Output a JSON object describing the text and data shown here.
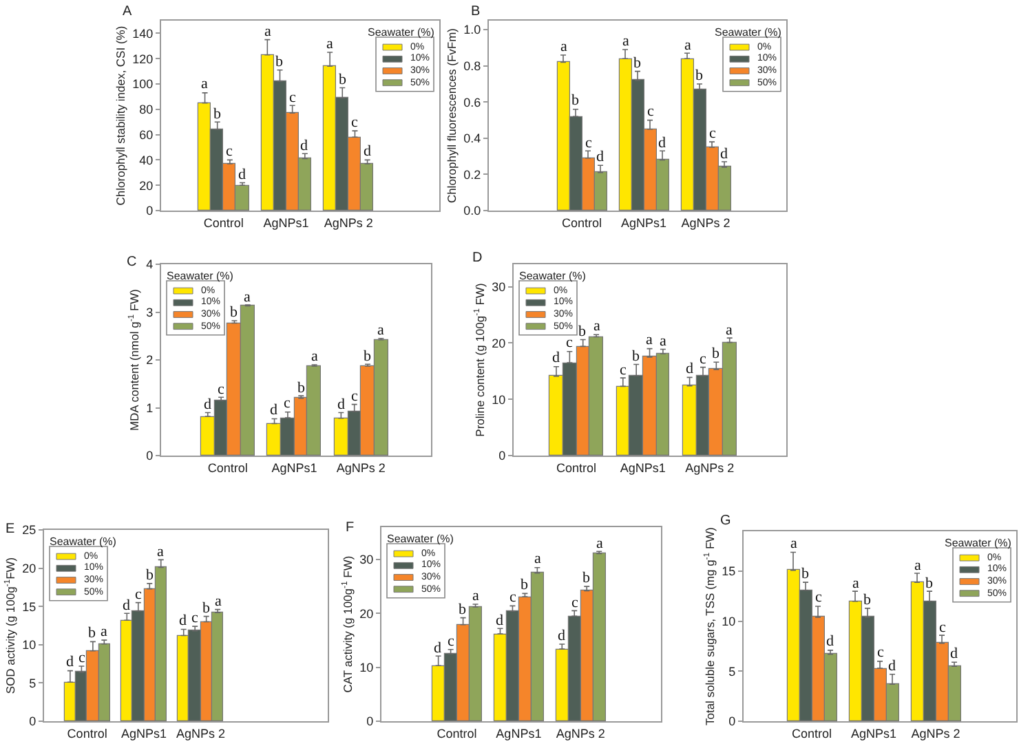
{
  "chart_data": [
    {
      "type": "bar",
      "title": "A",
      "ylabel": "Chlorophyll stability index, CSI (%)",
      "legend_title": "Seawater (%)",
      "legend": "top right",
      "categories": [
        "Control",
        "AgNPs1",
        "AgNPs 2"
      ],
      "ylim": [
        0,
        150
      ],
      "yticks": [
        0,
        20,
        40,
        60,
        80,
        100,
        120,
        140
      ],
      "series": [
        {
          "name": "0%",
          "color": "#ffe600",
          "values": [
            85,
            123,
            114
          ],
          "errors": [
            [
              85,
              93
            ],
            [
              123,
              135
            ],
            [
              114,
              125
            ]
          ],
          "value_labels": [
            "a",
            "a",
            "a"
          ]
        },
        {
          "name": "10%",
          "color": "#4f5f57",
          "values": [
            64,
            102,
            89
          ],
          "errors": [
            [
              64,
              70
            ],
            [
              102,
              111
            ],
            [
              89,
              97
            ]
          ],
          "value_labels": [
            "b",
            "b",
            "b"
          ]
        },
        {
          "name": "30%",
          "color": "#f5852a",
          "values": [
            37,
            77,
            58
          ],
          "errors": [
            [
              37,
              40
            ],
            [
              77,
              83
            ],
            [
              58,
              63
            ]
          ],
          "value_labels": [
            "c",
            "c",
            "c"
          ]
        },
        {
          "name": "50%",
          "color": "#8fa55a",
          "values": [
            20,
            41,
            37
          ],
          "errors": [
            [
              20,
              22
            ],
            [
              41,
              45
            ],
            [
              37,
              40
            ]
          ],
          "value_labels": [
            "d",
            "d",
            "d"
          ]
        }
      ]
    },
    {
      "type": "bar",
      "title": "B",
      "ylabel": "Chlorophyll fluorescences (FvFm)",
      "legend_title": "Seawater (%)",
      "legend": "top right",
      "categories": [
        "Control",
        "AgNPs1",
        "AgNPs 2"
      ],
      "ylim": [
        0,
        1.05
      ],
      "yticks": [
        {
          "value": 0,
          "label": "0.0"
        },
        0.2,
        0.4,
        0.6,
        0.8,
        {
          "value": 1,
          "label": "1.0"
        }
      ],
      "series": [
        {
          "name": "0%",
          "color": "#ffe600",
          "values": [
            0.82,
            0.84,
            0.84
          ],
          "errors": [
            [
              0.82,
              0.86
            ],
            [
              0.84,
              0.89
            ],
            [
              0.84,
              0.87
            ]
          ],
          "value_labels": [
            "a",
            "a",
            "a"
          ]
        },
        {
          "name": "10%",
          "color": "#4f5f57",
          "values": [
            0.52,
            0.72,
            0.67
          ],
          "errors": [
            [
              0.52,
              0.56
            ],
            [
              0.72,
              0.77
            ],
            [
              0.67,
              0.7
            ]
          ],
          "value_labels": [
            "b",
            "b",
            "b"
          ]
        },
        {
          "name": "30%",
          "color": "#f5852a",
          "values": [
            0.29,
            0.45,
            0.35
          ],
          "errors": [
            [
              0.29,
              0.33
            ],
            [
              0.45,
              0.5
            ],
            [
              0.35,
              0.38
            ]
          ],
          "value_labels": [
            "c",
            "c",
            "c"
          ]
        },
        {
          "name": "50%",
          "color": "#8fa55a",
          "values": [
            0.21,
            0.28,
            0.24
          ],
          "errors": [
            [
              0.21,
              0.25
            ],
            [
              0.28,
              0.33
            ],
            [
              0.24,
              0.27
            ]
          ],
          "value_labels": [
            "d",
            "d",
            "d"
          ]
        }
      ]
    },
    {
      "type": "bar",
      "title": "C",
      "ylabel": "MDA content (nmol g$^{-1}$ FW)",
      "legend_title": "Seawater (%)",
      "legend": "top left",
      "categories": [
        "Control",
        "AgNPs1",
        "AgNPs 2"
      ],
      "ylim": [
        0,
        4
      ],
      "yticks": [
        0,
        1,
        2,
        3,
        4
      ],
      "series": [
        {
          "name": "0%",
          "color": "#ffe600",
          "values": [
            0.82,
            0.67,
            0.78
          ],
          "errors": [
            [
              0.82,
              0.9
            ],
            [
              0.67,
              0.77
            ],
            [
              0.78,
              0.9
            ]
          ],
          "value_labels": [
            "d",
            "d",
            "d"
          ]
        },
        {
          "name": "10%",
          "color": "#4f5f57",
          "values": [
            1.15,
            0.79,
            0.92
          ],
          "errors": [
            [
              1.15,
              1.22
            ],
            [
              0.79,
              0.91
            ],
            [
              0.92,
              1.07
            ]
          ],
          "value_labels": [
            "c",
            "c",
            "c"
          ]
        },
        {
          "name": "30%",
          "color": "#f5852a",
          "values": [
            2.77,
            1.2,
            1.87
          ],
          "errors": [
            [
              2.77,
              2.82
            ],
            [
              1.2,
              1.25
            ],
            [
              1.87,
              1.91
            ]
          ],
          "value_labels": [
            "b",
            "b",
            "b"
          ]
        },
        {
          "name": "50%",
          "color": "#8fa55a",
          "values": [
            3.13,
            1.87,
            2.42
          ],
          "errors": [
            [
              3.13,
              3.15
            ],
            [
              1.87,
              1.9
            ],
            [
              2.42,
              2.45
            ]
          ],
          "value_labels": [
            "a",
            "a",
            "a"
          ]
        }
      ]
    },
    {
      "type": "bar",
      "title": "D",
      "ylabel": "Proline content (g 100g$^{-1}$ FW)",
      "legend_title": "Seawater (%)",
      "legend": "top left",
      "categories": [
        "Control",
        "AgNPs1",
        "AgNPs 2"
      ],
      "ylim": [
        0,
        34
      ],
      "yticks": [
        0,
        10,
        20,
        30
      ],
      "series": [
        {
          "name": "0%",
          "color": "#ffe600",
          "values": [
            14.1,
            12.3,
            12.4
          ],
          "errors": [
            [
              14.1,
              15.8
            ],
            [
              12.3,
              13.8
            ],
            [
              12.4,
              13.9
            ]
          ],
          "value_labels": [
            "d",
            "c",
            "d"
          ]
        },
        {
          "name": "10%",
          "color": "#4f5f57",
          "values": [
            16.5,
            14.2,
            14.2
          ],
          "errors": [
            [
              16.5,
              18.5
            ],
            [
              14.2,
              16.2
            ],
            [
              14.2,
              15.7
            ]
          ],
          "value_labels": [
            "c",
            "b",
            "c"
          ]
        },
        {
          "name": "30%",
          "color": "#f5852a",
          "values": [
            19.4,
            17.5,
            15.3
          ],
          "errors": [
            [
              19.4,
              20.6
            ],
            [
              17.5,
              19
            ],
            [
              15.3,
              16.6
            ]
          ],
          "value_labels": [
            "b",
            "a",
            "b"
          ]
        },
        {
          "name": "50%",
          "color": "#8fa55a",
          "values": [
            21.1,
            18.1,
            20.1
          ],
          "errors": [
            [
              21.1,
              21.5
            ],
            [
              18.1,
              18.9
            ],
            [
              20.1,
              20.9
            ]
          ],
          "value_labels": [
            "a",
            "a",
            "a"
          ]
        }
      ]
    },
    {
      "type": "bar",
      "title": "E",
      "ylabel": "SOD activity (g 100g$^{-1}$FW)",
      "legend_title": "Seawater (%)",
      "legend": "top left",
      "categories": [
        "Control",
        "AgNPs1",
        "AgNPs 2"
      ],
      "ylim": [
        0,
        25
      ],
      "yticks": [
        0,
        5,
        10,
        15,
        20,
        25
      ],
      "series": [
        {
          "name": "0%",
          "color": "#ffe600",
          "values": [
            5.1,
            13.2,
            11.2
          ],
          "errors": [
            [
              5.1,
              6.6
            ],
            [
              13.2,
              14.1
            ],
            [
              11.2,
              12
            ]
          ],
          "value_labels": [
            "d",
            "d",
            "d"
          ]
        },
        {
          "name": "10%",
          "color": "#4f5f57",
          "values": [
            6.4,
            14.4,
            11.8
          ],
          "errors": [
            [
              6.4,
              7.2
            ],
            [
              14.4,
              15.5
            ],
            [
              11.8,
              12.4
            ]
          ],
          "value_labels": [
            "c",
            "c",
            "c"
          ]
        },
        {
          "name": "30%",
          "color": "#f5852a",
          "values": [
            9.2,
            17.3,
            13
          ],
          "errors": [
            [
              9.2,
              10.4
            ],
            [
              17.3,
              18
            ],
            [
              13,
              13.7
            ]
          ],
          "value_labels": [
            "b",
            "b",
            "b"
          ]
        },
        {
          "name": "50%",
          "color": "#8fa55a",
          "values": [
            10.1,
            20.1,
            14.2
          ],
          "errors": [
            [
              10.1,
              10.6
            ],
            [
              20.1,
              21.1
            ],
            [
              14.2,
              14.6
            ]
          ],
          "value_labels": [
            "a",
            "a",
            "a"
          ]
        }
      ]
    },
    {
      "type": "bar",
      "title": "F",
      "ylabel": "CAT activity (g 100g$^{-1}$ FW)",
      "legend_title": "Seawater (%)",
      "legend": "top left",
      "categories": [
        "Control",
        "AgNPs1",
        "AgNPs 2"
      ],
      "ylim": [
        0,
        36
      ],
      "yticks": [
        0,
        10,
        20,
        30
      ],
      "series": [
        {
          "name": "0%",
          "color": "#ffe600",
          "values": [
            10.3,
            16.2,
            13.4
          ],
          "errors": [
            [
              10.3,
              12.1
            ],
            [
              16.2,
              17.2
            ],
            [
              13.4,
              14.3
            ]
          ],
          "value_labels": [
            "d",
            "d",
            "d"
          ]
        },
        {
          "name": "10%",
          "color": "#4f5f57",
          "values": [
            12.5,
            20.4,
            19.5
          ],
          "errors": [
            [
              12.5,
              13.3
            ],
            [
              20.4,
              21.4
            ],
            [
              19.5,
              20.5
            ]
          ],
          "value_labels": [
            "c",
            "c",
            "c"
          ]
        },
        {
          "name": "30%",
          "color": "#f5852a",
          "values": [
            17.9,
            23.1,
            24.2
          ],
          "errors": [
            [
              17.9,
              19.2
            ],
            [
              23.1,
              23.7
            ],
            [
              24.2,
              25
            ]
          ],
          "value_labels": [
            "b",
            "b",
            "b"
          ]
        },
        {
          "name": "50%",
          "color": "#8fa55a",
          "values": [
            21.2,
            27.5,
            31.1
          ],
          "errors": [
            [
              21.2,
              21.7
            ],
            [
              27.5,
              28.5
            ],
            [
              31.1,
              31.5
            ]
          ],
          "value_labels": [
            "a",
            "a",
            "a"
          ]
        }
      ]
    },
    {
      "type": "bar",
      "title": "G",
      "ylabel": "Total soluble sugars, TSS (mg g$^{-1}$ FW)",
      "legend_title": "Seawater (%)",
      "legend": "top right",
      "categories": [
        "Control",
        "AgNPs1",
        "AgNPs 2"
      ],
      "ylim": [
        0,
        19
      ],
      "yticks": [
        0,
        5,
        10,
        15
      ],
      "series": [
        {
          "name": "0%",
          "color": "#ffe600",
          "values": [
            15.1,
            12,
            13.9
          ],
          "errors": [
            [
              15.1,
              16.9
            ],
            [
              12,
              13
            ],
            [
              13.9,
              14.8
            ]
          ],
          "value_labels": [
            "a",
            "a",
            "a"
          ]
        },
        {
          "name": "10%",
          "color": "#4f5f57",
          "values": [
            13.1,
            10.4,
            12
          ],
          "errors": [
            [
              13.1,
              13.9
            ],
            [
              10.4,
              11.3
            ],
            [
              12,
              13
            ]
          ],
          "value_labels": [
            "b",
            "b",
            "b"
          ]
        },
        {
          "name": "30%",
          "color": "#f5852a",
          "values": [
            10.4,
            5.3,
            7.8
          ],
          "errors": [
            [
              10.4,
              11.5
            ],
            [
              5.3,
              6
            ],
            [
              7.8,
              8.6
            ]
          ],
          "value_labels": [
            "c",
            "c",
            "c"
          ]
        },
        {
          "name": "50%",
          "color": "#8fa55a",
          "values": [
            6.7,
            3.7,
            5.5
          ],
          "errors": [
            [
              6.7,
              7.1
            ],
            [
              3.7,
              4.7
            ],
            [
              5.5,
              5.9
            ]
          ],
          "value_labels": [
            "d",
            "d",
            "d"
          ]
        }
      ]
    }
  ]
}
